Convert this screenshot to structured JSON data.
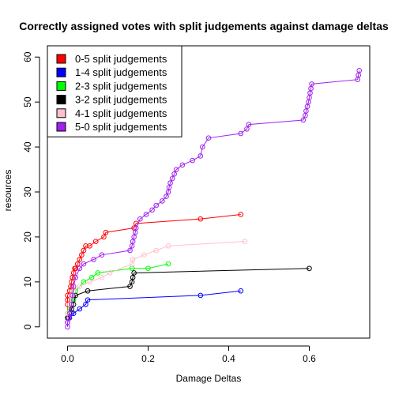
{
  "chart_data": {
    "type": "line",
    "title": "Correctly assigned votes with split judgements against damage deltas",
    "xlabel": "Damage Deltas",
    "ylabel": "resources",
    "xlim": [
      -0.05,
      0.75
    ],
    "ylim": [
      -2.5,
      62.5
    ],
    "xticks": [
      0.0,
      0.2,
      0.4,
      0.6
    ],
    "xtick_labels": [
      "0.0",
      "0.2",
      "0.4",
      "0.6"
    ],
    "yticks": [
      0,
      10,
      20,
      30,
      40,
      50,
      60
    ],
    "ytick_labels": [
      "0",
      "10",
      "20",
      "30",
      "40",
      "50",
      "60"
    ],
    "grid": false,
    "legend_position": "top-left",
    "markers": "open-circle",
    "series": [
      {
        "name": "0-5 split judgements",
        "color": "#FF0000",
        "x": [
          0.0,
          0.0,
          0.0,
          0.0,
          0.005,
          0.008,
          0.01,
          0.012,
          0.015,
          0.018,
          0.02,
          0.025,
          0.03,
          0.035,
          0.04,
          0.045,
          0.055,
          0.07,
          0.09,
          0.095,
          0.165,
          0.17,
          0.33,
          0.43
        ],
        "y": [
          2,
          5,
          6,
          7,
          8,
          9,
          10,
          11,
          12,
          13,
          13,
          14,
          15,
          16,
          17,
          18,
          18,
          19,
          20,
          21,
          22,
          23,
          24,
          25
        ]
      },
      {
        "name": "1-4 split judgements",
        "color": "#0000FF",
        "x": [
          0.0,
          0.005,
          0.01,
          0.015,
          0.03,
          0.045,
          0.05,
          0.33,
          0.43
        ],
        "y": [
          1,
          2,
          3,
          3,
          4,
          5,
          6,
          7,
          8
        ]
      },
      {
        "name": "2-3 split judgements",
        "color": "#00FF00",
        "x": [
          0.0,
          0.0,
          0.005,
          0.01,
          0.015,
          0.02,
          0.04,
          0.06,
          0.075,
          0.16,
          0.2,
          0.25
        ],
        "y": [
          2,
          3,
          4,
          5,
          6,
          8,
          10,
          11,
          12,
          13,
          13,
          14
        ]
      },
      {
        "name": "3-2 split judgements",
        "color": "#000000",
        "x": [
          0.0,
          0.005,
          0.01,
          0.015,
          0.02,
          0.05,
          0.155,
          0.16,
          0.162,
          0.165,
          0.6
        ],
        "y": [
          2,
          3,
          4,
          5,
          7,
          8,
          9,
          10,
          11,
          12,
          13
        ]
      },
      {
        "name": "4-1 split judgements",
        "color": "#FFC0CB",
        "x": [
          0.0,
          0.0,
          0.005,
          0.01,
          0.015,
          0.03,
          0.055,
          0.085,
          0.105,
          0.16,
          0.162,
          0.19,
          0.22,
          0.25,
          0.44
        ],
        "y": [
          1,
          3,
          5,
          7,
          8,
          9,
          10,
          11,
          12,
          14,
          15,
          16,
          17,
          18,
          19
        ]
      },
      {
        "name": "5-0 split judgements",
        "color": "#A020F0",
        "x": [
          0.0,
          0.0,
          0.003,
          0.006,
          0.01,
          0.012,
          0.015,
          0.02,
          0.03,
          0.04,
          0.065,
          0.085,
          0.155,
          0.16,
          0.162,
          0.165,
          0.168,
          0.17,
          0.18,
          0.195,
          0.21,
          0.22,
          0.235,
          0.245,
          0.25,
          0.252,
          0.255,
          0.26,
          0.265,
          0.27,
          0.285,
          0.31,
          0.33,
          0.335,
          0.35,
          0.43,
          0.445,
          0.45,
          0.585,
          0.59,
          0.592,
          0.595,
          0.598,
          0.6,
          0.602,
          0.604,
          0.606,
          0.72,
          0.722,
          0.724
        ],
        "y": [
          0,
          1,
          2,
          3,
          5,
          7,
          9,
          11,
          13,
          14,
          15,
          16,
          17,
          18,
          19,
          20,
          21,
          22,
          24,
          25,
          26,
          27,
          28,
          29,
          30,
          31,
          32,
          33,
          34,
          35,
          36,
          37,
          38,
          40,
          42,
          43,
          44,
          45,
          46,
          47,
          48,
          49,
          50,
          51,
          52,
          53,
          54,
          55,
          56,
          57
        ]
      }
    ]
  }
}
